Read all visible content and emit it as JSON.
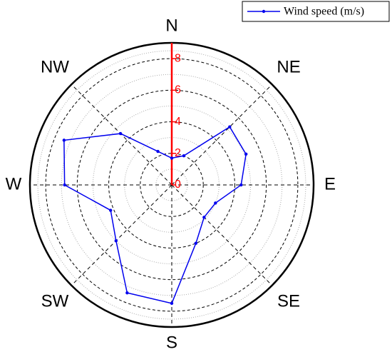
{
  "chart_data": {
    "type": "polar-line",
    "categories": [
      "N",
      null,
      "NE",
      null,
      "E",
      null,
      "SE",
      null,
      "S",
      null,
      "SW",
      null,
      "W",
      null,
      "NW",
      null
    ],
    "series": [
      {
        "name": "Wind speed (m/s)",
        "color": "#0000ee",
        "values": [
          1.7,
          2.0,
          5.2,
          5.1,
          4.4,
          3.0,
          2.9,
          4.0,
          7.5,
          7.4,
          5.0,
          4.2,
          6.8,
          7.4,
          4.6,
          2.3
        ]
      }
    ],
    "rlim": [
      0,
      9
    ],
    "rticks": [
      0,
      2,
      4,
      6,
      8
    ],
    "radial_axis_color": "#ff0000",
    "grid": true,
    "legend": "top-right"
  }
}
